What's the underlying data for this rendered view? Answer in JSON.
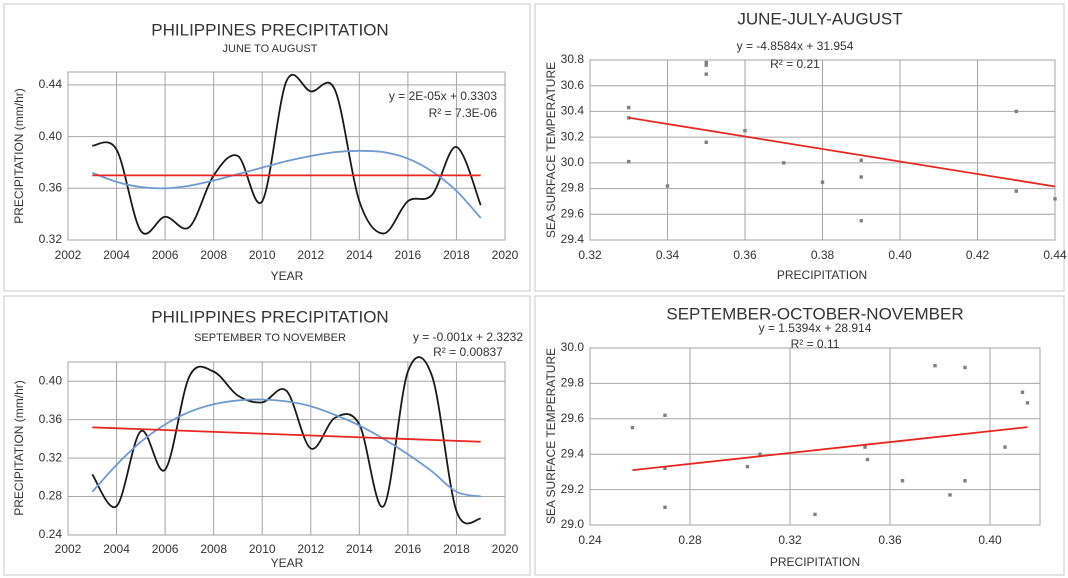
{
  "chart_data": [
    {
      "type": "line",
      "title": "PHILIPPINES PRECIPITATION",
      "subtitle": "JUNE TO AUGUST",
      "annotations": [
        "y = 2E-05x + 0.3303",
        "R² = 7.3E-06"
      ],
      "x_label": "YEAR",
      "y_label": "PRECIPITATION (mm/hr)",
      "grid": true,
      "x": [
        2003,
        2004,
        2005,
        2006,
        2007,
        2008,
        2009,
        2010,
        2011,
        2012,
        2013,
        2014,
        2015,
        2016,
        2017,
        2018,
        2019
      ],
      "xlim": [
        2002,
        2020
      ],
      "xticks": [
        2002,
        2004,
        2006,
        2008,
        2010,
        2012,
        2014,
        2016,
        2018,
        2020
      ],
      "ylim": [
        0.32,
        0.45
      ],
      "yticks": [
        0.32,
        0.36,
        {
          "value": 0.4,
          "label": "0.40"
        },
        0.44
      ],
      "series": [
        {
          "color": "#1a1a1a",
          "smooth": true,
          "values": [
            0.393,
            0.39,
            0.327,
            0.338,
            0.33,
            0.37,
            0.385,
            0.35,
            0.443,
            0.435,
            0.436,
            0.35,
            0.325,
            0.35,
            0.355,
            0.392,
            0.347
          ]
        },
        {
          "color": "#6f9bd1",
          "smooth": true,
          "values": [
            0.372,
            0.365,
            0.361,
            0.36,
            0.362,
            0.366,
            0.371,
            0.376,
            0.381,
            0.385,
            0.388,
            0.389,
            0.388,
            0.383,
            0.373,
            0.358,
            0.337
          ]
        },
        {
          "color": "#e8261f",
          "x": [
            2003,
            2019
          ],
          "values": [
            0.37,
            0.37
          ]
        }
      ]
    },
    {
      "type": "scatter",
      "title": "JUNE-JULY-AUGUST",
      "annotations": [
        "y = -4.8584x + 31.954",
        "R² = 0.21"
      ],
      "x_label": "PRECIPITATION",
      "y_label": "SEA SURFACE TEMPERATURE",
      "grid": true,
      "color": "#7f7f7f",
      "xlim": [
        0.32,
        0.44
      ],
      "xticks": [
        0.32,
        0.34,
        0.36,
        0.38,
        {
          "value": 0.4,
          "label": "0.40"
        },
        0.42,
        0.44
      ],
      "ylim": [
        29.4,
        30.8
      ],
      "yticks": [
        29.4,
        29.6,
        29.8,
        {
          "value": 30,
          "label": "30.0"
        },
        30.2,
        30.4,
        30.6,
        30.8
      ],
      "x": [
        0.33,
        0.33,
        0.33,
        0.34,
        0.35,
        0.35,
        0.35,
        0.35,
        0.36,
        0.37,
        0.38,
        0.39,
        0.39,
        0.39,
        0.43,
        0.43,
        0.44
      ],
      "values": [
        30.43,
        30.35,
        30.01,
        29.82,
        30.78,
        30.76,
        30.69,
        30.16,
        30.25,
        30.0,
        29.85,
        30.02,
        29.89,
        29.55,
        30.4,
        29.78,
        29.72
      ],
      "trendline": {
        "color": "#e8261f",
        "x": [
          0.33,
          0.44
        ],
        "values": [
          30.351,
          29.816
        ]
      }
    },
    {
      "type": "line",
      "title": "PHILIPPINES PRECIPITATION",
      "subtitle": "SEPTEMBER TO NOVEMBER",
      "annotations": [
        "y = -0.001x + 2.3232",
        "R² = 0.00837"
      ],
      "x_label": "YEAR",
      "y_label": "PRECIPITATION (mm/hr)",
      "grid": true,
      "x": [
        2003,
        2004,
        2005,
        2006,
        2007,
        2008,
        2009,
        2010,
        2011,
        2012,
        2013,
        2014,
        2015,
        2016,
        2017,
        2018,
        2019
      ],
      "xlim": [
        2002,
        2020
      ],
      "xticks": [
        2002,
        2004,
        2006,
        2008,
        2010,
        2012,
        2014,
        2016,
        2018,
        2020
      ],
      "ylim": [
        0.24,
        0.42
      ],
      "yticks": [
        0.24,
        0.28,
        0.32,
        0.36,
        {
          "value": 0.4,
          "label": "0.40"
        }
      ],
      "series": [
        {
          "color": "#1a1a1a",
          "smooth": true,
          "values": [
            0.303,
            0.27,
            0.348,
            0.308,
            0.405,
            0.41,
            0.385,
            0.378,
            0.39,
            0.33,
            0.362,
            0.355,
            0.27,
            0.41,
            0.405,
            0.265,
            0.257
          ]
        },
        {
          "color": "#6f9bd1",
          "smooth": true,
          "values": [
            0.285,
            0.313,
            0.337,
            0.355,
            0.368,
            0.376,
            0.38,
            0.381,
            0.379,
            0.374,
            0.365,
            0.354,
            0.34,
            0.324,
            0.306,
            0.285,
            0.28
          ]
        },
        {
          "color": "#e8261f",
          "x": [
            2003,
            2019
          ],
          "values": [
            0.352,
            0.337
          ]
        }
      ]
    },
    {
      "type": "scatter",
      "title": "SEPTEMBER-OCTOBER-NOVEMBER",
      "annotations": [
        "y = 1.5394x + 28.914",
        "R² = 0.11"
      ],
      "x_label": "PRECIPITATION",
      "y_label": "SEA SURFACE TEMPERATURE",
      "grid": true,
      "color": "#7f7f7f",
      "xlim": [
        0.24,
        0.42
      ],
      "xticks": [
        0.24,
        0.28,
        0.32,
        0.36,
        {
          "value": 0.4,
          "label": "0.40"
        }
      ],
      "ylim": [
        29,
        30
      ],
      "yticks": [
        {
          "value": 29,
          "label": "29.0"
        },
        29.2,
        29.4,
        29.6,
        29.8,
        {
          "value": 30,
          "label": "30.0"
        }
      ],
      "x": [
        0.257,
        0.27,
        0.27,
        0.27,
        0.303,
        0.308,
        0.33,
        0.35,
        0.351,
        0.365,
        0.378,
        0.384,
        0.39,
        0.39,
        0.406,
        0.413,
        0.415
      ],
      "values": [
        29.55,
        29.62,
        29.32,
        29.1,
        29.33,
        29.4,
        29.06,
        29.44,
        29.37,
        29.25,
        29.9,
        29.17,
        29.89,
        29.25,
        29.44,
        29.75,
        29.69
      ],
      "trendline": {
        "color": "#e8261f",
        "x": [
          0.257,
          0.415
        ],
        "values": [
          29.31,
          29.553
        ]
      }
    }
  ]
}
